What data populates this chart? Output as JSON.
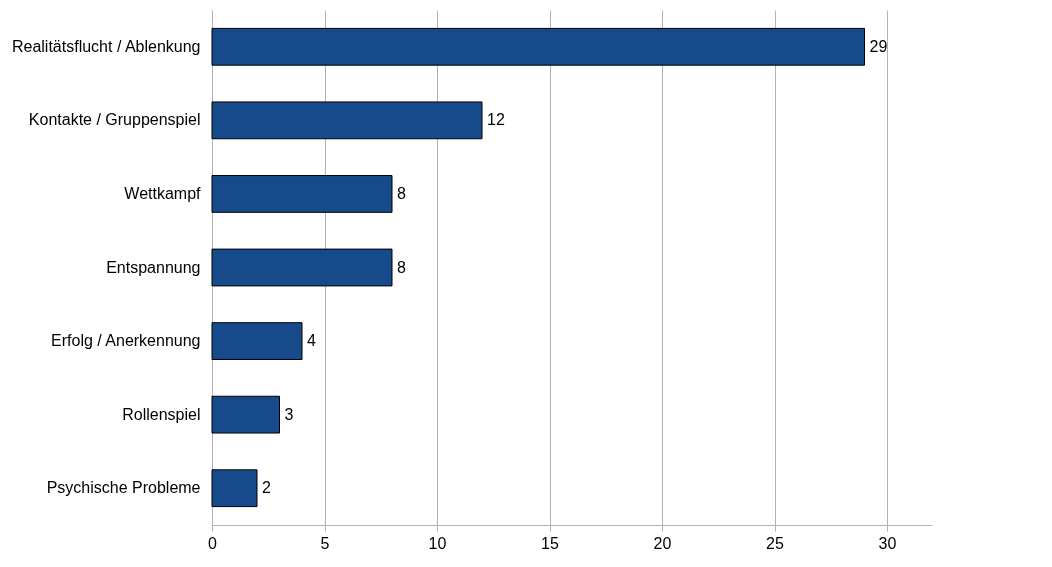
{
  "chart_data": {
    "type": "bar",
    "orientation": "horizontal",
    "categories": [
      "Realitätsflucht / Ablenkung",
      "Kontakte / Gruppenspiel",
      "Wettkampf",
      "Entspannung",
      "Erfolg / Anerkennung",
      "Rollenspiel",
      "Psychische Probleme"
    ],
    "values": [
      29,
      12,
      8,
      8,
      4,
      3,
      2
    ],
    "color": "#164a8a",
    "xlim": [
      0,
      32
    ],
    "xticks": [
      0,
      5,
      10,
      15,
      20,
      25,
      30
    ],
    "grid": "x",
    "data_labels": true
  }
}
